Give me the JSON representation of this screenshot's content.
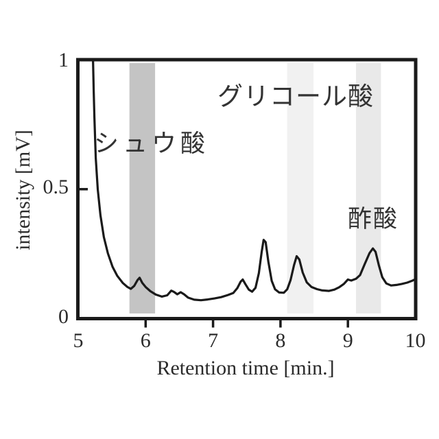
{
  "figure": {
    "kind": "chromatogram"
  },
  "chart_data": {
    "type": "line",
    "title": "",
    "xlabel": "Retention time [min.]",
    "ylabel": "intensity [mV]",
    "xlim": [
      5,
      10
    ],
    "ylim": [
      0,
      1
    ],
    "x_ticks": [
      5,
      6,
      7,
      8,
      9,
      10
    ],
    "x_tick_labels": [
      "5",
      "6",
      "7",
      "8",
      "9",
      "10"
    ],
    "x_tick_marks": [
      6,
      7,
      8,
      9
    ],
    "y_ticks": [
      0,
      0.5,
      1
    ],
    "y_tick_labels": [
      "0",
      "0.5",
      "1"
    ],
    "y_tick_marks": [
      0.5
    ],
    "grid": false,
    "legend": "none",
    "line_color": "#1a1a1a",
    "axis_color": "#1a1a1a",
    "background": "#ffffff",
    "bands": [
      {
        "label": "シュウ酸",
        "t_start": 5.76,
        "t_end": 6.14,
        "color": "#c4c4c4"
      },
      {
        "label": "グリコール酸",
        "t_start": 8.1,
        "t_end": 8.49,
        "color": "#f1f1f1"
      },
      {
        "label": "酢酸",
        "t_start": 9.12,
        "t_end": 9.49,
        "color": "#e9e9e9"
      }
    ],
    "peaks": [
      {
        "label": "シュウ酸",
        "retention_time_min": 5.9,
        "intensity_mV": 0.16
      },
      {
        "label": "",
        "retention_time_min": 7.45,
        "intensity_mV": 0.15
      },
      {
        "label": "",
        "retention_time_min": 7.76,
        "intensity_mV": 0.3
      },
      {
        "label": "グリコール酸",
        "retention_time_min": 8.25,
        "intensity_mV": 0.24
      },
      {
        "label": "酢酸",
        "retention_time_min": 9.38,
        "intensity_mV": 0.27
      }
    ],
    "series": [
      {
        "name": "chromatogram",
        "points": [
          [
            5.22,
            1.0
          ],
          [
            5.23,
            0.88
          ],
          [
            5.24,
            0.78
          ],
          [
            5.26,
            0.62
          ],
          [
            5.29,
            0.5
          ],
          [
            5.33,
            0.4
          ],
          [
            5.38,
            0.315
          ],
          [
            5.44,
            0.252
          ],
          [
            5.51,
            0.2
          ],
          [
            5.58,
            0.165
          ],
          [
            5.66,
            0.138
          ],
          [
            5.73,
            0.122
          ],
          [
            5.78,
            0.115
          ],
          [
            5.83,
            0.126
          ],
          [
            5.88,
            0.149
          ],
          [
            5.91,
            0.158
          ],
          [
            5.95,
            0.138
          ],
          [
            6.0,
            0.122
          ],
          [
            6.07,
            0.106
          ],
          [
            6.15,
            0.093
          ],
          [
            6.24,
            0.085
          ],
          [
            6.32,
            0.09
          ],
          [
            6.38,
            0.108
          ],
          [
            6.42,
            0.103
          ],
          [
            6.47,
            0.094
          ],
          [
            6.52,
            0.102
          ],
          [
            6.57,
            0.094
          ],
          [
            6.63,
            0.081
          ],
          [
            6.72,
            0.073
          ],
          [
            6.82,
            0.071
          ],
          [
            6.92,
            0.074
          ],
          [
            7.02,
            0.078
          ],
          [
            7.12,
            0.083
          ],
          [
            7.22,
            0.091
          ],
          [
            7.3,
            0.099
          ],
          [
            7.36,
            0.118
          ],
          [
            7.41,
            0.143
          ],
          [
            7.44,
            0.151
          ],
          [
            7.48,
            0.133
          ],
          [
            7.53,
            0.112
          ],
          [
            7.58,
            0.104
          ],
          [
            7.63,
            0.119
          ],
          [
            7.68,
            0.176
          ],
          [
            7.72,
            0.256
          ],
          [
            7.75,
            0.304
          ],
          [
            7.78,
            0.295
          ],
          [
            7.82,
            0.22
          ],
          [
            7.87,
            0.146
          ],
          [
            7.92,
            0.113
          ],
          [
            7.98,
            0.101
          ],
          [
            8.05,
            0.1
          ],
          [
            8.1,
            0.113
          ],
          [
            8.15,
            0.149
          ],
          [
            8.2,
            0.206
          ],
          [
            8.24,
            0.241
          ],
          [
            8.28,
            0.228
          ],
          [
            8.33,
            0.178
          ],
          [
            8.39,
            0.14
          ],
          [
            8.46,
            0.122
          ],
          [
            8.54,
            0.114
          ],
          [
            8.62,
            0.109
          ],
          [
            8.72,
            0.107
          ],
          [
            8.8,
            0.112
          ],
          [
            8.87,
            0.121
          ],
          [
            8.94,
            0.134
          ],
          [
            9.0,
            0.151
          ],
          [
            9.05,
            0.147
          ],
          [
            9.12,
            0.154
          ],
          [
            9.18,
            0.168
          ],
          [
            9.25,
            0.211
          ],
          [
            9.32,
            0.253
          ],
          [
            9.37,
            0.271
          ],
          [
            9.41,
            0.258
          ],
          [
            9.46,
            0.205
          ],
          [
            9.51,
            0.16
          ],
          [
            9.57,
            0.136
          ],
          [
            9.64,
            0.128
          ],
          [
            9.72,
            0.13
          ],
          [
            9.8,
            0.134
          ],
          [
            9.88,
            0.139
          ],
          [
            9.95,
            0.146
          ],
          [
            10.0,
            0.152
          ]
        ]
      }
    ]
  }
}
